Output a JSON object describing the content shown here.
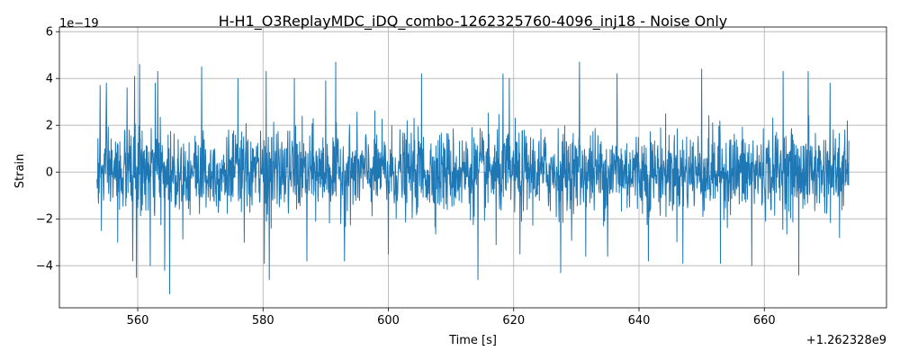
{
  "chart_data": {
    "type": "line",
    "title": "H-H1_O3ReplayMDC_iDQ_combo-1262325760-4096_inj18 - Noise Only",
    "xlabel": "Time [s]",
    "ylabel": "Strain",
    "x_offset_label": "+1.262328e9",
    "y_scale_label": "1e−19",
    "xlim": [
      547.5,
      679.5
    ],
    "ylim": [
      -5.8,
      6.2
    ],
    "x_ticks": [
      560,
      580,
      600,
      620,
      640,
      660
    ],
    "x_tick_labels": [
      "560",
      "580",
      "600",
      "620",
      "640",
      "660"
    ],
    "y_ticks": [
      -4,
      -2,
      0,
      2,
      4,
      6
    ],
    "y_tick_labels": [
      "−4",
      "−2",
      "0",
      "2",
      "4",
      "6"
    ],
    "grid": true,
    "color": "#1f77b4",
    "series": [
      {
        "x_start": 553.5,
        "x_end": 673.5,
        "description_stats": {
          "typical_abs": 1.6
        },
        "peaks": [
          [
            554,
            3.7
          ],
          [
            555,
            3.8
          ],
          [
            558.3,
            3.6
          ],
          [
            559.5,
            4.1
          ],
          [
            560.3,
            4.6
          ],
          [
            562.8,
            3.8
          ],
          [
            563.2,
            4.3
          ],
          [
            570.2,
            4.5
          ],
          [
            576,
            4.0
          ],
          [
            580.5,
            4.3
          ],
          [
            585,
            4.0
          ],
          [
            590,
            3.9
          ],
          [
            591.6,
            4.7
          ],
          [
            605.3,
            4.2
          ],
          [
            614.3,
            4.4
          ],
          [
            618.3,
            4.2
          ],
          [
            619.3,
            4.0
          ],
          [
            630.5,
            4.7
          ],
          [
            636.5,
            4.2
          ],
          [
            650,
            4.4
          ],
          [
            663,
            4.3
          ],
          [
            667,
            4.3
          ],
          [
            670.5,
            3.8
          ]
        ],
        "troughs": [
          [
            554.2,
            -2.5
          ],
          [
            556.8,
            -3.0
          ],
          [
            559.2,
            -3.8
          ],
          [
            559.8,
            -4.5
          ],
          [
            562,
            -4.0
          ],
          [
            564.3,
            -4.2
          ],
          [
            565.1,
            -5.2
          ],
          [
            577,
            -3.0
          ],
          [
            580.2,
            -3.9
          ],
          [
            581,
            -4.6
          ],
          [
            587,
            -3.8
          ],
          [
            593,
            -3.8
          ],
          [
            600,
            -3.5
          ],
          [
            614.3,
            -4.6
          ],
          [
            617.2,
            -3.1
          ],
          [
            621,
            -3.5
          ],
          [
            627.5,
            -4.3
          ],
          [
            631.5,
            -3.6
          ],
          [
            635,
            -3.6
          ],
          [
            641.5,
            -3.8
          ],
          [
            647,
            -3.9
          ],
          [
            653,
            -3.9
          ],
          [
            658,
            -4.0
          ],
          [
            665.5,
            -4.4
          ],
          [
            672,
            -2.8
          ]
        ]
      }
    ]
  }
}
